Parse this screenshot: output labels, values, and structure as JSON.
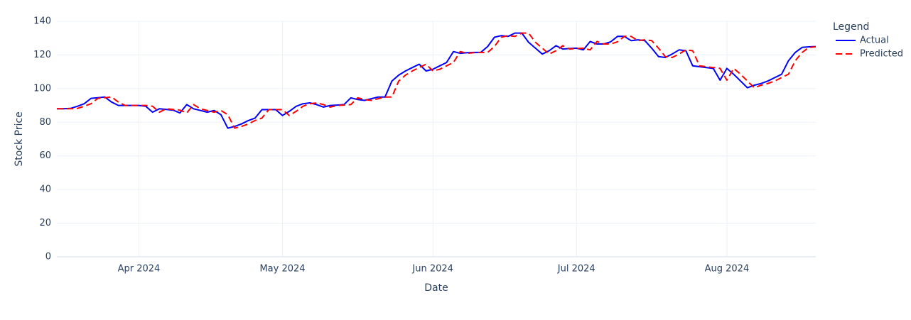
{
  "chart_data": {
    "type": "line",
    "x_label": "Date",
    "y_label": "Stock Price",
    "legend_title": "Legend",
    "legend_position": "outside-right-top",
    "grid": true,
    "categories": [
      null,
      null,
      null,
      null,
      null,
      null,
      null,
      null,
      null,
      null,
      null,
      null,
      "Apr 2024",
      null,
      null,
      null,
      null,
      null,
      null,
      null,
      null,
      null,
      null,
      null,
      null,
      null,
      null,
      null,
      null,
      null,
      null,
      null,
      null,
      "May 2024",
      null,
      null,
      null,
      null,
      null,
      null,
      null,
      null,
      null,
      null,
      null,
      null,
      null,
      null,
      null,
      null,
      null,
      null,
      null,
      null,
      null,
      "Jun 2024",
      null,
      null,
      null,
      null,
      null,
      null,
      null,
      null,
      null,
      null,
      null,
      null,
      null,
      null,
      null,
      null,
      null,
      null,
      null,
      null,
      "Jul 2024",
      null,
      null,
      null,
      null,
      null,
      null,
      null,
      null,
      null,
      null,
      null,
      null,
      null,
      null,
      null,
      null,
      null,
      null,
      null,
      null,
      null,
      "Aug 2024",
      null,
      null,
      null,
      null,
      null,
      null,
      null,
      null,
      null,
      null,
      null,
      null,
      null
    ],
    "ylim": [
      0,
      140
    ],
    "yticks": [
      0,
      20,
      40,
      60,
      80,
      100,
      120,
      140
    ],
    "series": [
      {
        "name": "Actual",
        "color": "#0000ff",
        "dash": "solid",
        "values": [
          88,
          88,
          88.2,
          89.5,
          91,
          94.2,
          94.6,
          95,
          92,
          90,
          90,
          90,
          90,
          89.5,
          86,
          88,
          87.6,
          87.2,
          85.5,
          90.5,
          88,
          87,
          86,
          87,
          84.5,
          76.5,
          77.5,
          79,
          81,
          82.5,
          87.5,
          87.5,
          87.5,
          84,
          86.5,
          89.5,
          91,
          91.5,
          90.5,
          89,
          90,
          90.2,
          90.5,
          94.5,
          93.5,
          93,
          94,
          95,
          95,
          104.5,
          108,
          110.5,
          112.5,
          114.5,
          110.5,
          111.5,
          113.5,
          115.5,
          122,
          121,
          121.3,
          121.5,
          121.5,
          125,
          130.5,
          131.5,
          131,
          133,
          133,
          127.5,
          124,
          120.5,
          122.5,
          125.5,
          123.5,
          123.8,
          124,
          123,
          128,
          126.5,
          126.5,
          127.8,
          131,
          131,
          128.5,
          129,
          128.5,
          124,
          119,
          118.5,
          120.5,
          123,
          122.5,
          113.5,
          113,
          112.5,
          112,
          105,
          112,
          108.5,
          104.5,
          100.5,
          102,
          103,
          104.5,
          106.5,
          108.5,
          116.5,
          121.5,
          124.5,
          124.8,
          125
        ]
      },
      {
        "name": "Predicted",
        "color": "#ff0000",
        "dash": "dash",
        "values": [
          88,
          88,
          88,
          88.2,
          89.5,
          91,
          94.2,
          94.6,
          95,
          92,
          90,
          90,
          90,
          90,
          89.5,
          86,
          88,
          87.6,
          87.2,
          85.5,
          90.5,
          88,
          87,
          86,
          87,
          84.5,
          76.5,
          77.5,
          79,
          81,
          82.5,
          87.5,
          87.5,
          87.5,
          84,
          86.5,
          89.5,
          91,
          91.5,
          90.5,
          89,
          90,
          90.2,
          90.5,
          94.5,
          93.5,
          93,
          94,
          95,
          95,
          104.5,
          108,
          110.5,
          112.5,
          114.5,
          110.5,
          111.5,
          113.5,
          115.5,
          122,
          121,
          121.3,
          121.5,
          121.5,
          125,
          130.5,
          131.5,
          131,
          133,
          133,
          127.5,
          124,
          120.5,
          122.5,
          125.5,
          123.5,
          123.8,
          124,
          123,
          128,
          126.5,
          126.5,
          127.8,
          131,
          131,
          128.5,
          129,
          128.5,
          124,
          119,
          118.5,
          120.5,
          123,
          122.5,
          113.5,
          113,
          112.5,
          112,
          105,
          112,
          108.5,
          104.5,
          100.5,
          102,
          103,
          104.5,
          106.5,
          108.5,
          116.5,
          121.5,
          124.5,
          124.8
        ]
      }
    ]
  }
}
